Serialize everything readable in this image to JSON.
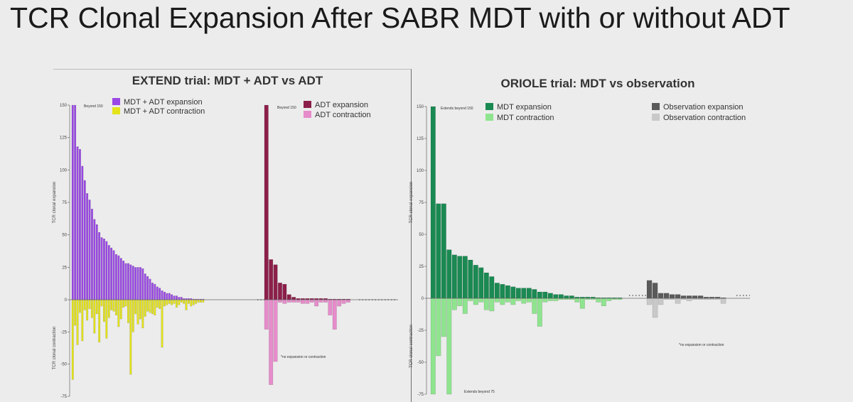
{
  "slide": {
    "title": "TCR Clonal Expansion After SABR MDT with or without ADT"
  },
  "chart_data": [
    {
      "type": "bar",
      "title": "EXTEND trial: MDT + ADT vs ADT",
      "ylabel_expansion": "TCR clonal expansion",
      "ylabel_contraction": "TCR clonal contraction",
      "yticks_expansion": [
        "150",
        "125",
        "100",
        "75",
        "50",
        "25",
        "0"
      ],
      "yticks_contraction": [
        "-25",
        "-50",
        "-75"
      ],
      "ylim": [
        -75,
        150
      ],
      "groups": [
        {
          "name": "MDT + ADT",
          "series": [
            {
              "name": "MDT + ADT expansion",
              "color": "#9a48e6",
              "values": [
                150,
                150,
                118,
                116,
                103,
                92,
                82,
                77,
                70,
                62,
                58,
                52,
                48,
                47,
                45,
                42,
                40,
                38,
                35,
                34,
                32,
                30,
                28,
                28,
                27,
                26,
                25,
                25,
                25,
                24,
                20,
                18,
                16,
                13,
                12,
                10,
                9,
                7,
                6,
                5,
                5,
                4,
                3,
                3,
                2,
                2,
                1,
                1,
                1,
                1,
                0.5,
                0.5,
                0.5,
                0.5,
                0.5
              ]
            },
            {
              "name": "MDT + ADT contraction",
              "color": "#e4e31a",
              "values": [
                -62,
                -20,
                -35,
                -10,
                -32,
                -8,
                -16,
                -7,
                -14,
                -26,
                -11,
                -33,
                -5,
                -17,
                -30,
                -14,
                -8,
                -9,
                -12,
                -21,
                -15,
                -6,
                -5,
                -18,
                -58,
                -25,
                -11,
                -19,
                -15,
                -22,
                -13,
                -9,
                -10,
                -11,
                -12,
                -6,
                -7,
                -37,
                -5,
                -4,
                -3,
                -4,
                -3,
                -6,
                -4,
                -2,
                -3,
                -8,
                -3,
                -5,
                -4,
                -3,
                -2,
                -2,
                -2
              ]
            }
          ]
        },
        {
          "name": "ADT",
          "series": [
            {
              "name": "ADT expansion",
              "color": "#8c1f4a",
              "values": [
                150,
                31,
                27,
                13,
                12,
                4,
                2,
                1,
                1,
                1,
                1,
                1,
                1,
                1,
                0.5,
                0.5,
                0.5,
                0.5,
                0.5
              ]
            },
            {
              "name": "ADT contraction",
              "color": "#e68ccb",
              "values": [
                -23,
                -66,
                -48,
                -2,
                -3,
                -2,
                -2,
                -2,
                -3,
                -3,
                -2,
                -5,
                -2,
                -2,
                -12,
                -23,
                -5,
                -3,
                -2
              ]
            }
          ]
        }
      ],
      "annotations": [
        "Beyond 150",
        "Beyond 150",
        "*no expansion or contraction"
      ]
    },
    {
      "type": "bar",
      "title": "ORIOLE trial: MDT vs observation",
      "ylabel_expansion": "TCR clonal expansion",
      "ylabel_contraction": "TCR clonal contraction",
      "yticks_expansion": [
        "150",
        "125",
        "100",
        "75",
        "50",
        "25",
        "0"
      ],
      "yticks_contraction": [
        "-25",
        "-50",
        "-75"
      ],
      "ylim": [
        -75,
        150
      ],
      "groups": [
        {
          "name": "MDT",
          "series": [
            {
              "name": "MDT expansion",
              "color": "#1a8a52",
              "values": [
                150,
                74,
                74,
                38,
                34,
                33,
                33,
                30,
                26,
                24,
                20,
                17,
                12,
                11,
                10,
                9,
                8,
                8,
                8,
                7,
                5,
                5,
                4,
                3,
                3,
                2,
                2,
                1,
                1,
                1,
                1,
                0.5,
                0.5,
                0.5,
                0.5,
                0.5
              ]
            },
            {
              "name": "MDT contraction",
              "color": "#8fe48f",
              "values": [
                -75,
                -45,
                -30,
                -75,
                -9,
                -6,
                -12,
                -2,
                -5,
                -3,
                -9,
                -10,
                -3,
                -5,
                -3,
                -5,
                -2,
                -4,
                -3,
                -12,
                -22,
                -3,
                -2,
                -2,
                -1,
                -1,
                -1,
                -3,
                -8,
                -1,
                -1,
                -3,
                -6,
                -2,
                -1,
                -1
              ]
            }
          ]
        },
        {
          "name": "Observation",
          "series": [
            {
              "name": "Observation expansion",
              "color": "#5a5a5a",
              "values": [
                14,
                12,
                4,
                4,
                3,
                3,
                2,
                2,
                2,
                2,
                1,
                1,
                1,
                0.5
              ]
            },
            {
              "name": "Observation contraction",
              "color": "#c9c9c9",
              "values": [
                -5,
                -15,
                -5,
                -1,
                -1,
                -4,
                -1,
                -2,
                -1,
                -1,
                -1,
                -1,
                -1,
                -4
              ]
            }
          ]
        }
      ],
      "annotations": [
        "Extends beyond 150",
        "Extends beyond 75",
        "*no expansion or contraction"
      ]
    }
  ]
}
